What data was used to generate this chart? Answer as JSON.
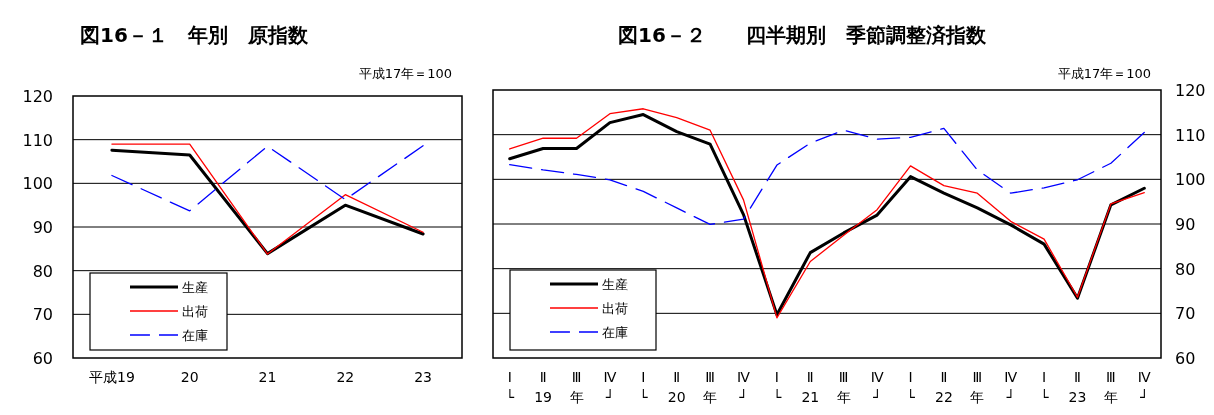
{
  "chart_data": [
    {
      "type": "line",
      "title": "図16－１　年別　原指数",
      "subtitle": "平成17年＝100",
      "categories": [
        "平成19",
        "20",
        "21",
        "22",
        "23"
      ],
      "series": [
        {
          "name": "生産",
          "color": "#000000",
          "line_style": "solid",
          "values": [
            107.6,
            106.5,
            83.9,
            95.0,
            88.4
          ]
        },
        {
          "name": "出荷",
          "color": "#ff0000",
          "line_style": "solid",
          "values": [
            109.0,
            109.0,
            83.8,
            97.4,
            88.8
          ]
        },
        {
          "name": "在庫",
          "color": "#0000ff",
          "line_style": "dashed",
          "values": [
            101.8,
            93.7,
            108.5,
            96.3,
            108.6
          ]
        }
      ],
      "ylim": [
        60,
        120
      ],
      "yticks": [
        60,
        70,
        80,
        90,
        100,
        110,
        120
      ],
      "grid": "y",
      "legend": "bottom left"
    },
    {
      "type": "line",
      "title": "図16－２　　四半期別　季節調整済指数",
      "subtitle": "平成17年＝100",
      "categories": [
        "Ⅰ\n└",
        "Ⅱ\n19",
        "Ⅲ\n年",
        "Ⅳ\n┘",
        "Ⅰ\n└",
        "Ⅱ\n20",
        "Ⅲ\n年",
        "Ⅳ\n┘",
        "Ⅰ\n└",
        "Ⅱ\n21",
        "Ⅲ\n年",
        "Ⅳ\n┘",
        "Ⅰ\n└",
        "Ⅱ\n22",
        "Ⅲ\n年",
        "Ⅳ\n┘",
        "Ⅰ\n└",
        "Ⅱ\n23",
        "Ⅲ\n年",
        "Ⅳ\n┘"
      ],
      "series": [
        {
          "name": "生産",
          "color": "#000000",
          "line_style": "solid",
          "axis": "y2",
          "values": [
            104.6,
            106.9,
            106.9,
            112.7,
            114.5,
            110.7,
            107.9,
            92.1,
            69.7,
            83.6,
            88.0,
            92.0,
            100.6,
            96.9,
            93.6,
            89.8,
            85.5,
            73.4,
            94.3,
            98.0
          ]
        },
        {
          "name": "出荷",
          "color": "#ff0000",
          "line_style": "solid",
          "axis": "y2",
          "values": [
            106.8,
            109.2,
            109.2,
            114.7,
            115.8,
            113.8,
            111.0,
            95.4,
            69.0,
            81.6,
            87.5,
            93.2,
            103.0,
            98.6,
            96.9,
            90.6,
            86.6,
            73.6,
            94.5,
            97.0
          ]
        },
        {
          "name": "在庫",
          "color": "#0000ff",
          "line_style": "dashed",
          "axis": "y2",
          "values": [
            103.3,
            102.1,
            101.1,
            99.9,
            97.3,
            93.6,
            89.9,
            91.1,
            103.2,
            108.1,
            111.0,
            109.0,
            109.4,
            111.4,
            102.1,
            96.9,
            98.1,
            99.9,
            103.6,
            110.5
          ]
        }
      ],
      "y2lim": [
        60,
        120
      ],
      "y2ticks": [
        60,
        70,
        80,
        90,
        100,
        110,
        120
      ],
      "grid": "y",
      "legend": "bottom left"
    }
  ]
}
